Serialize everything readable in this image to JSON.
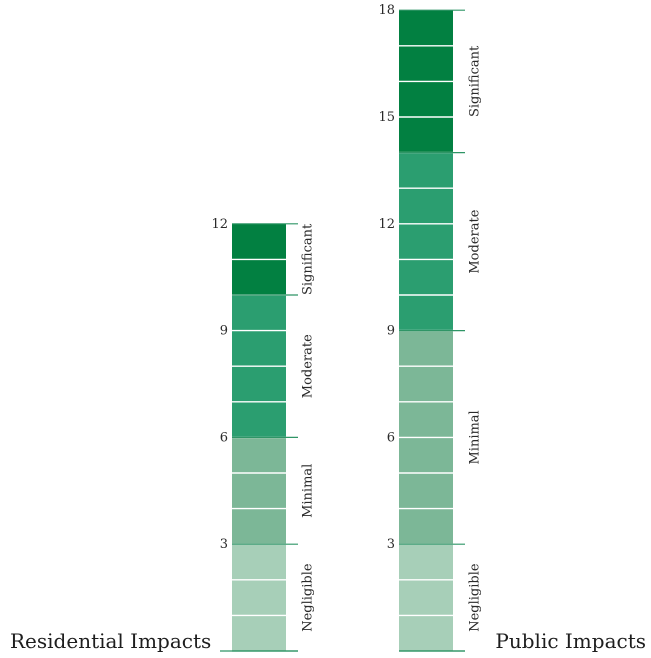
{
  "colors": {
    "Significant": "#028041",
    "Moderate": "#2b9e70",
    "Minimal": "#7cb797",
    "Negligible": "#a7cfb8",
    "axis": "#2f9566"
  },
  "scales": [
    {
      "title": "Residential Impacts",
      "max": 12,
      "ticks": [
        "3",
        "6",
        "9",
        "12"
      ],
      "bands": [
        {
          "label": "Negligible",
          "from": 0,
          "to": 3
        },
        {
          "label": "Minimal",
          "from": 3,
          "to": 6
        },
        {
          "label": "Moderate",
          "from": 6,
          "to": 10
        },
        {
          "label": "Significant",
          "from": 10,
          "to": 12
        }
      ]
    },
    {
      "title": "Public Impacts",
      "max": 18,
      "ticks": [
        "3",
        "6",
        "9",
        "12",
        "15",
        "18"
      ],
      "bands": [
        {
          "label": "Negligible",
          "from": 0,
          "to": 3
        },
        {
          "label": "Minimal",
          "from": 3,
          "to": 9
        },
        {
          "label": "Moderate",
          "from": 9,
          "to": 14
        },
        {
          "label": "Significant",
          "from": 14,
          "to": 18
        }
      ]
    }
  ]
}
